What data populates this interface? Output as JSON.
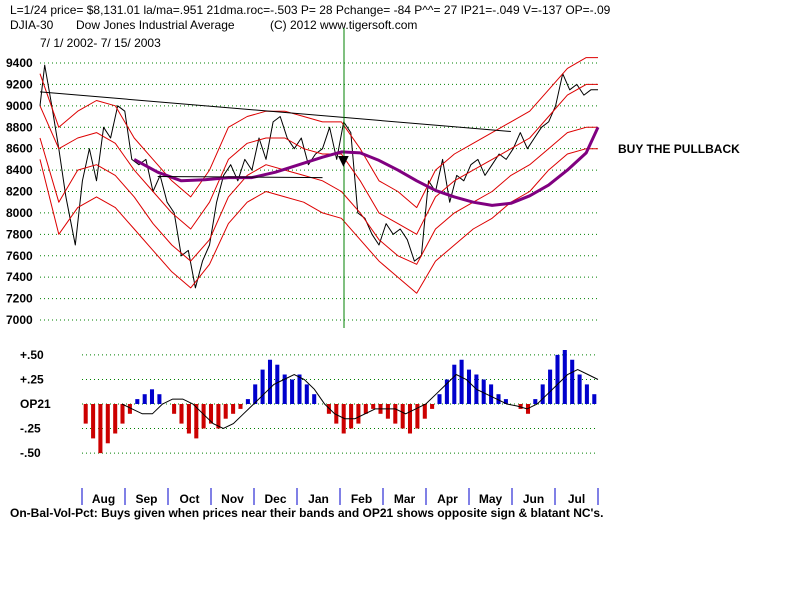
{
  "header": {
    "line1": "L=1/24  price= $8,131.01  la/ma=.951  21dma.roc=-.503 P=  28 Pchange= -84 P^^= 27 IP21=-.049 V=-137 OP=-.09",
    "symbol": "DJIA-30",
    "name": "Dow Jones Industrial Average",
    "copyright": "(C) 2012 www.tigersoft.com",
    "date_range": "7/ 1/ 2002-  7/ 15/ 2003"
  },
  "annotation": "BUY THE PULLBACK",
  "footer_note": "On-Bal-Vol-Pct: Buys given when prices near their bands and OP21 shows opposite sign & blatant NC's.",
  "colors": {
    "price": "#000000",
    "bands": "#dd0000",
    "ma": "#800080",
    "positive": "#0000cc",
    "negative": "#cc0000",
    "grid": "#008000",
    "signal": "#008000"
  },
  "chart_data": [
    {
      "type": "line",
      "title": "DJIA-30 Dow Jones Industrial Average",
      "ylim": [
        7000,
        9400
      ],
      "yticks": [
        "9400",
        "9200",
        "9000",
        "8800",
        "8600",
        "8400",
        "8200",
        "8000",
        "7800",
        "7600",
        "7400",
        "7200",
        "7000"
      ],
      "ytick_values": [
        9400,
        9200,
        9000,
        8800,
        8600,
        8400,
        8200,
        8000,
        7800,
        7600,
        7400,
        7200,
        7000
      ],
      "months": [
        "Aug",
        "Sep",
        "Oct",
        "Nov",
        "Dec",
        "Jan",
        "Feb",
        "Mar",
        "Apr",
        "May",
        "Jun",
        "Jul"
      ],
      "series": [
        {
          "name": "DJIA close",
          "points": [
            [
              0,
              9000
            ],
            [
              2,
              9380
            ],
            [
              5,
              9000
            ],
            [
              8,
              8600
            ],
            [
              11,
              8150
            ],
            [
              15,
              7700
            ],
            [
              18,
              8300
            ],
            [
              21,
              8600
            ],
            [
              24,
              8300
            ],
            [
              27,
              8800
            ],
            [
              30,
              8700
            ],
            [
              33,
              9000
            ],
            [
              36,
              8950
            ],
            [
              39,
              8500
            ],
            [
              42,
              8450
            ],
            [
              45,
              8500
            ],
            [
              48,
              8200
            ],
            [
              51,
              8350
            ],
            [
              54,
              8100
            ],
            [
              57,
              8000
            ],
            [
              60,
              7600
            ],
            [
              63,
              7650
            ],
            [
              66,
              7300
            ],
            [
              69,
              7550
            ],
            [
              72,
              7700
            ],
            [
              75,
              8100
            ],
            [
              78,
              8350
            ],
            [
              81,
              8450
            ],
            [
              84,
              8300
            ],
            [
              87,
              8500
            ],
            [
              90,
              8400
            ],
            [
              93,
              8700
            ],
            [
              96,
              8500
            ],
            [
              99,
              8850
            ],
            [
              102,
              8900
            ],
            [
              105,
              8700
            ],
            [
              108,
              8600
            ],
            [
              111,
              8700
            ],
            [
              114,
              8450
            ],
            [
              117,
              8550
            ],
            [
              120,
              8600
            ],
            [
              123,
              8800
            ],
            [
              126,
              8500
            ],
            [
              129,
              8850
            ],
            [
              132,
              8750
            ],
            [
              135,
              8000
            ],
            [
              138,
              7950
            ],
            [
              141,
              7800
            ],
            [
              144,
              7700
            ],
            [
              147,
              7900
            ],
            [
              150,
              7800
            ],
            [
              153,
              7850
            ],
            [
              156,
              7750
            ],
            [
              159,
              7550
            ],
            [
              162,
              7600
            ],
            [
              165,
              8300
            ],
            [
              168,
              8200
            ],
            [
              171,
              8500
            ],
            [
              174,
              8100
            ],
            [
              177,
              8350
            ],
            [
              180,
              8300
            ],
            [
              183,
              8450
            ],
            [
              186,
              8500
            ],
            [
              189,
              8350
            ],
            [
              192,
              8450
            ],
            [
              195,
              8550
            ],
            [
              198,
              8500
            ],
            [
              201,
              8600
            ],
            [
              204,
              8750
            ],
            [
              207,
              8600
            ],
            [
              210,
              8700
            ],
            [
              213,
              8800
            ],
            [
              216,
              8850
            ],
            [
              219,
              9000
            ],
            [
              222,
              9300
            ],
            [
              225,
              9150
            ],
            [
              228,
              9200
            ],
            [
              231,
              9100
            ],
            [
              234,
              9150
            ],
            [
              237,
              9150
            ]
          ]
        },
        {
          "name": "Upper band",
          "points": [
            [
              0,
              9300
            ],
            [
              8,
              8800
            ],
            [
              16,
              8950
            ],
            [
              24,
              9050
            ],
            [
              32,
              9000
            ],
            [
              40,
              8700
            ],
            [
              48,
              8500
            ],
            [
              56,
              8300
            ],
            [
              64,
              8150
            ],
            [
              72,
              8400
            ],
            [
              80,
              8800
            ],
            [
              88,
              8900
            ],
            [
              96,
              8950
            ],
            [
              104,
              8950
            ],
            [
              112,
              8900
            ],
            [
              120,
              8850
            ],
            [
              128,
              8850
            ],
            [
              136,
              8600
            ],
            [
              144,
              8300
            ],
            [
              152,
              8200
            ],
            [
              160,
              8050
            ],
            [
              168,
              8400
            ],
            [
              176,
              8550
            ],
            [
              184,
              8650
            ],
            [
              192,
              8750
            ],
            [
              200,
              8850
            ],
            [
              208,
              8950
            ],
            [
              216,
              9150
            ],
            [
              224,
              9350
            ],
            [
              232,
              9450
            ],
            [
              237,
              9450
            ]
          ]
        },
        {
          "name": "Inner upper band",
          "points": [
            [
              0,
              9000
            ],
            [
              8,
              8600
            ],
            [
              16,
              8700
            ],
            [
              24,
              8750
            ],
            [
              32,
              8650
            ],
            [
              40,
              8400
            ],
            [
              48,
              8200
            ],
            [
              56,
              8000
            ],
            [
              64,
              7850
            ],
            [
              72,
              8100
            ],
            [
              80,
              8500
            ],
            [
              88,
              8650
            ],
            [
              96,
              8700
            ],
            [
              104,
              8700
            ],
            [
              112,
              8600
            ],
            [
              120,
              8550
            ],
            [
              128,
              8550
            ],
            [
              136,
              8300
            ],
            [
              144,
              8000
            ],
            [
              152,
              7900
            ],
            [
              160,
              7800
            ],
            [
              168,
              8150
            ],
            [
              176,
              8300
            ],
            [
              184,
              8400
            ],
            [
              192,
              8500
            ],
            [
              200,
              8600
            ],
            [
              208,
              8700
            ],
            [
              216,
              8900
            ],
            [
              224,
              9100
            ],
            [
              232,
              9200
            ],
            [
              237,
              9200
            ]
          ]
        },
        {
          "name": "Inner lower band",
          "points": [
            [
              0,
              8700
            ],
            [
              8,
              8100
            ],
            [
              16,
              8400
            ],
            [
              24,
              8450
            ],
            [
              32,
              8350
            ],
            [
              40,
              8150
            ],
            [
              48,
              7900
            ],
            [
              56,
              7700
            ],
            [
              64,
              7550
            ],
            [
              72,
              7750
            ],
            [
              80,
              8150
            ],
            [
              88,
              8350
            ],
            [
              96,
              8450
            ],
            [
              104,
              8400
            ],
            [
              112,
              8350
            ],
            [
              120,
              8300
            ],
            [
              128,
              8200
            ],
            [
              136,
              8000
            ],
            [
              144,
              7750
            ],
            [
              152,
              7600
            ],
            [
              160,
              7520
            ],
            [
              168,
              7850
            ],
            [
              176,
              8000
            ],
            [
              184,
              8100
            ],
            [
              192,
              8200
            ],
            [
              200,
              8350
            ],
            [
              208,
              8450
            ],
            [
              216,
              8600
            ],
            [
              224,
              8750
            ],
            [
              232,
              8800
            ],
            [
              237,
              8800
            ]
          ]
        },
        {
          "name": "Lower band",
          "points": [
            [
              0,
              8500
            ],
            [
              8,
              7800
            ],
            [
              16,
              8050
            ],
            [
              24,
              8150
            ],
            [
              32,
              8050
            ],
            [
              40,
              7850
            ],
            [
              48,
              7650
            ],
            [
              56,
              7450
            ],
            [
              64,
              7300
            ],
            [
              72,
              7520
            ],
            [
              80,
              7900
            ],
            [
              88,
              8100
            ],
            [
              96,
              8200
            ],
            [
              104,
              8150
            ],
            [
              112,
              8100
            ],
            [
              120,
              8000
            ],
            [
              128,
              7950
            ],
            [
              136,
              7750
            ],
            [
              144,
              7550
            ],
            [
              152,
              7400
            ],
            [
              160,
              7250
            ],
            [
              168,
              7550
            ],
            [
              176,
              7700
            ],
            [
              184,
              7850
            ],
            [
              192,
              7950
            ],
            [
              200,
              8100
            ],
            [
              208,
              8200
            ],
            [
              216,
              8400
            ],
            [
              224,
              8550
            ],
            [
              232,
              8600
            ],
            [
              237,
              8600
            ]
          ]
        },
        {
          "name": "Moving average",
          "points": [
            [
              40,
              8500
            ],
            [
              50,
              8380
            ],
            [
              60,
              8300
            ],
            [
              70,
              8310
            ],
            [
              80,
              8330
            ],
            [
              90,
              8330
            ],
            [
              100,
              8380
            ],
            [
              110,
              8450
            ],
            [
              120,
              8520
            ],
            [
              128,
              8570
            ],
            [
              136,
              8560
            ],
            [
              144,
              8490
            ],
            [
              152,
              8400
            ],
            [
              160,
              8300
            ],
            [
              168,
              8210
            ],
            [
              176,
              8150
            ],
            [
              184,
              8100
            ],
            [
              192,
              8070
            ],
            [
              200,
              8090
            ],
            [
              208,
              8160
            ],
            [
              216,
              8260
            ],
            [
              224,
              8400
            ],
            [
              232,
              8560
            ],
            [
              237,
              8800
            ]
          ]
        },
        {
          "name": "Trendline",
          "points": [
            [
              0,
              9130
            ],
            [
              200,
              8760
            ]
          ]
        },
        {
          "name": "Support line",
          "points": [
            [
              50,
              8340
            ],
            [
              120,
              8330
            ]
          ]
        }
      ]
    },
    {
      "type": "bar",
      "title": "OP21",
      "ylim": [
        -0.55,
        0.55
      ],
      "yticks": [
        "+.50",
        "+.25",
        "OP21",
        "-.25",
        "-.50"
      ],
      "ytick_values": [
        0.5,
        0.25,
        0,
        -0.25,
        -0.5
      ],
      "oscillator": [
        -0.2,
        -0.35,
        -0.5,
        -0.4,
        -0.3,
        -0.2,
        -0.1,
        0.05,
        0.1,
        0.15,
        0.1,
        0.0,
        -0.1,
        -0.2,
        -0.3,
        -0.35,
        -0.25,
        -0.2,
        -0.25,
        -0.15,
        -0.1,
        -0.05,
        0.05,
        0.2,
        0.35,
        0.45,
        0.4,
        0.3,
        0.25,
        0.3,
        0.2,
        0.1,
        0.0,
        -0.1,
        -0.2,
        -0.3,
        -0.25,
        -0.2,
        -0.1,
        -0.05,
        -0.1,
        -0.15,
        -0.2,
        -0.25,
        -0.3,
        -0.25,
        -0.15,
        -0.05,
        0.1,
        0.25,
        0.4,
        0.45,
        0.35,
        0.3,
        0.25,
        0.2,
        0.1,
        0.05,
        0.0,
        -0.05,
        -0.1,
        0.05,
        0.2,
        0.35,
        0.5,
        0.55,
        0.45,
        0.3,
        0.2,
        0.1
      ],
      "signal": [
        0.0,
        -0.05,
        -0.1,
        -0.1,
        0.0,
        0.05,
        0.05,
        0.0,
        -0.1,
        -0.2,
        -0.25,
        -0.2,
        -0.1,
        0.0,
        0.1,
        0.2,
        0.25,
        0.3,
        0.25,
        0.15,
        0.0,
        -0.1,
        -0.15,
        -0.15,
        -0.1,
        -0.05,
        -0.05,
        -0.05,
        -0.1,
        -0.05,
        0.0,
        0.1,
        0.2,
        0.3,
        0.25,
        0.15,
        0.1,
        0.05,
        0.0,
        -0.02,
        -0.05,
        0.0,
        0.1,
        0.2,
        0.3,
        0.35,
        0.3,
        0.25
      ]
    }
  ]
}
